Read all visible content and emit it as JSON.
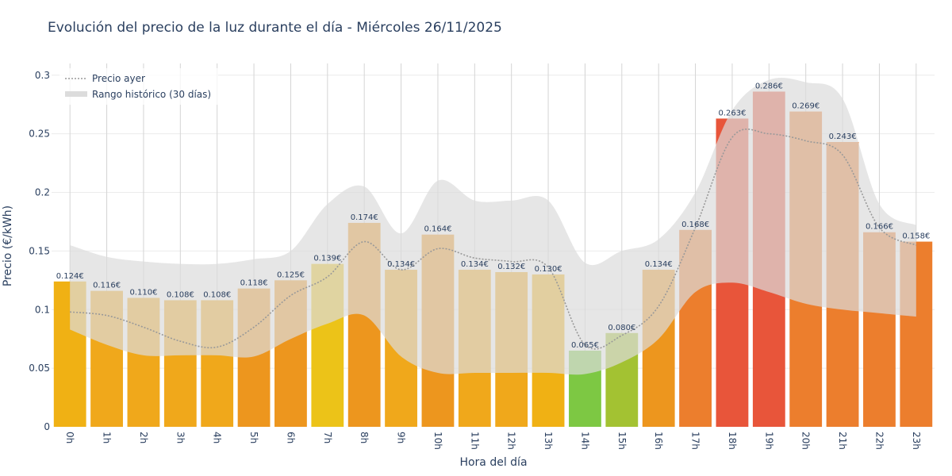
{
  "chart_data": {
    "type": "bar",
    "title": "Evolución del precio de la luz durante el día - Miércoles 26/11/2025",
    "xlabel": "Hora del día",
    "ylabel": "Precio (€/kWh)",
    "ylim": [
      0,
      0.31
    ],
    "y_ticks": [
      {
        "value": 0,
        "label": "0"
      },
      {
        "value": 0.05,
        "label": "0.05"
      },
      {
        "value": 0.1,
        "label": "0.1"
      },
      {
        "value": 0.15,
        "label": "0.15"
      },
      {
        "value": 0.2,
        "label": "0.2"
      },
      {
        "value": 0.25,
        "label": "0.25"
      },
      {
        "value": 0.3,
        "label": "0.3"
      }
    ],
    "categories": [
      "0h",
      "1h",
      "2h",
      "3h",
      "4h",
      "5h",
      "6h",
      "7h",
      "8h",
      "9h",
      "10h",
      "11h",
      "12h",
      "13h",
      "14h",
      "15h",
      "16h",
      "17h",
      "18h",
      "19h",
      "20h",
      "21h",
      "22h",
      "23h"
    ],
    "grid": true,
    "legend_position": "top-left",
    "series": [
      {
        "name": "",
        "kind": "bar",
        "values": [
          0.124,
          0.116,
          0.11,
          0.108,
          0.108,
          0.118,
          0.125,
          0.139,
          0.174,
          0.134,
          0.164,
          0.134,
          0.132,
          0.13,
          0.065,
          0.08,
          0.134,
          0.168,
          0.263,
          0.286,
          0.269,
          0.243,
          0.166,
          0.158
        ],
        "labels": [
          "0.124€",
          "0.116€",
          "0.110€",
          "0.108€",
          "0.108€",
          "0.118€",
          "0.125€",
          "0.139€",
          "0.174€",
          "0.134€",
          "0.164€",
          "0.134€",
          "0.132€",
          "0.130€",
          "0.065€",
          "0.080€",
          "0.134€",
          "0.168€",
          "0.263€",
          "0.286€",
          "0.269€",
          "0.243€",
          "0.166€",
          "0.158€"
        ],
        "colors": [
          "#f0b114",
          "#f0a81b",
          "#f0a81b",
          "#f0a81b",
          "#f0a81b",
          "#ed961e",
          "#ed961e",
          "#ecc318",
          "#ed961e",
          "#f0a81b",
          "#ed961e",
          "#f0a81b",
          "#f0a81b",
          "#f0b114",
          "#7dc843",
          "#a3c232",
          "#ed961e",
          "#ec7e2d",
          "#e8553a",
          "#e8553a",
          "#ec7e2d",
          "#ec7e2d",
          "#ec7e2d",
          "#ec7e2d"
        ]
      },
      {
        "name": "Precio ayer",
        "kind": "line",
        "style": "dotted",
        "color": "#999999",
        "values": [
          0.098,
          0.095,
          0.085,
          0.073,
          0.068,
          0.085,
          0.112,
          0.128,
          0.158,
          0.134,
          0.152,
          0.144,
          0.141,
          0.136,
          0.07,
          0.078,
          0.103,
          0.17,
          0.247,
          0.25,
          0.244,
          0.232,
          0.17,
          0.155
        ]
      },
      {
        "name": "Rango histórico (30 días)",
        "kind": "band",
        "color": "#dcdcdc",
        "upper": [
          0.155,
          0.145,
          0.141,
          0.139,
          0.139,
          0.143,
          0.15,
          0.19,
          0.205,
          0.165,
          0.21,
          0.193,
          0.193,
          0.193,
          0.14,
          0.15,
          0.16,
          0.2,
          0.27,
          0.296,
          0.294,
          0.28,
          0.19,
          0.172
        ],
        "lower": [
          0.083,
          0.07,
          0.061,
          0.061,
          0.061,
          0.06,
          0.075,
          0.088,
          0.095,
          0.06,
          0.046,
          0.046,
          0.046,
          0.046,
          0.045,
          0.055,
          0.075,
          0.115,
          0.123,
          0.115,
          0.105,
          0.1,
          0.097,
          0.094
        ]
      }
    ]
  }
}
